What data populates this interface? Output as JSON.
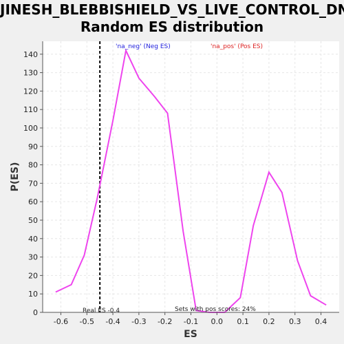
{
  "chart_data": {
    "type": "line",
    "title": [
      "JINESH_BLEBBISHIELD_VS_LIVE_CONTROL_DN:",
      "Random ES distribution"
    ],
    "xlabel": "ES",
    "ylabel": "P(ES)",
    "xlim": [
      -0.67,
      0.47
    ],
    "ylim": [
      0,
      147
    ],
    "xticks": [
      "-0.6",
      "-0.5",
      "-0.4",
      "-0.3",
      "-0.2",
      "-0.1",
      "0.0",
      "0.1",
      "0.2",
      "0.3",
      "0.4"
    ],
    "yticks": [
      "0",
      "10",
      "20",
      "30",
      "40",
      "50",
      "60",
      "70",
      "80",
      "90",
      "100",
      "110",
      "120",
      "130",
      "140"
    ],
    "grid": true,
    "series": [
      {
        "name": "Random ES",
        "color": "#ee44ee",
        "x": [
          -0.62,
          -0.56,
          -0.51,
          -0.46,
          -0.4,
          -0.35,
          -0.3,
          -0.24,
          -0.19,
          -0.13,
          -0.08,
          -0.03,
          0.03,
          0.09,
          0.14,
          0.2,
          0.25,
          0.31,
          0.36,
          0.42
        ],
        "y": [
          11,
          15,
          31,
          62,
          104,
          142,
          127,
          117,
          108,
          44,
          1,
          0,
          0,
          8,
          47,
          76,
          65,
          28,
          9,
          4
        ]
      }
    ],
    "real_es": {
      "value": -0.45,
      "label": "Real ES -0.4"
    },
    "legend": [
      {
        "label": "'na_neg' (Neg ES)",
        "color": "#2222dd"
      },
      {
        "label": "'na_pos' (Pos ES)",
        "color": "#dd2222"
      }
    ],
    "annotation": "Sets with pos scores: 24%"
  }
}
